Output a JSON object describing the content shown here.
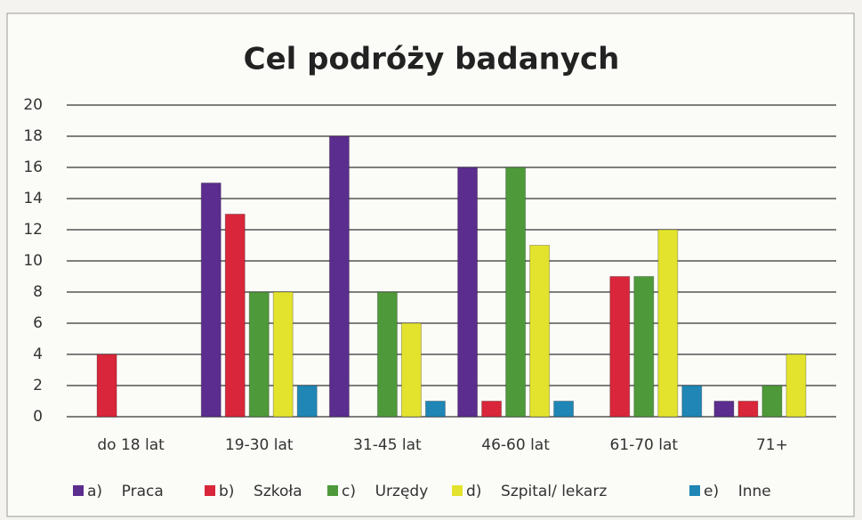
{
  "chart_data": {
    "type": "bar",
    "title": "Cel podróży badanych",
    "categories": [
      "do 18 lat",
      "19-30 lat",
      "31-45 lat",
      "46-60 lat",
      "61-70 lat",
      "71+"
    ],
    "series": [
      {
        "name": "a)    Praca",
        "color": "#5b2d8e",
        "values": [
          0,
          15,
          18,
          16,
          0,
          1
        ]
      },
      {
        "name": "b)    Szkoła",
        "color": "#d9263a",
        "values": [
          4,
          13,
          0,
          1,
          9,
          1
        ]
      },
      {
        "name": "c)    Urzędy",
        "color": "#4e9a3a",
        "values": [
          0,
          8,
          8,
          16,
          9,
          2
        ]
      },
      {
        "name": "d)    Szpital/ lekarz",
        "color": "#e3e32e",
        "values": [
          0,
          8,
          6,
          11,
          12,
          4
        ]
      },
      {
        "name": "e)    Inne",
        "color": "#1f86b5",
        "values": [
          0,
          2,
          1,
          1,
          2,
          0
        ]
      }
    ],
    "ylim": [
      0,
      20
    ],
    "yticks": [
      0,
      2,
      4,
      6,
      8,
      10,
      12,
      14,
      16,
      18,
      20
    ],
    "grid": true,
    "legend": "bottom"
  }
}
